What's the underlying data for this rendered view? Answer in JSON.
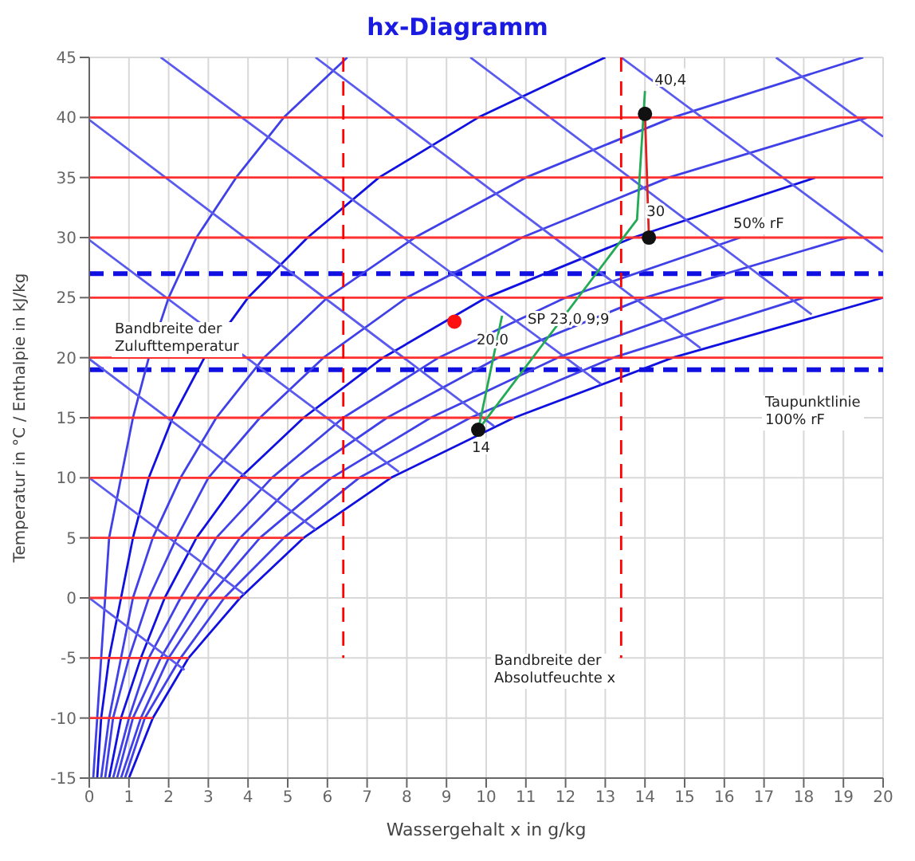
{
  "chart_data": {
    "type": "line",
    "title": "hx-Diagramm",
    "xlabel": "Wassergehalt x in g/kg",
    "ylabel": "Temperatur in °C / Enthalpie in kJ/kg",
    "xlim": [
      0,
      20
    ],
    "ylim": [
      -15,
      45
    ],
    "xticks": [
      0,
      1,
      2,
      3,
      4,
      5,
      6,
      7,
      8,
      9,
      10,
      11,
      12,
      13,
      14,
      15,
      16,
      17,
      18,
      19,
      20
    ],
    "yticks": [
      -15,
      -10,
      -5,
      0,
      5,
      10,
      15,
      20,
      25,
      30,
      35,
      40,
      45
    ],
    "grid": true,
    "marker": "none",
    "line_style": "solid",
    "series": [
      {
        "color": "#1010e0",
        "x": [
          1.0,
          1.6,
          2.5,
          3.8,
          5.4,
          7.6,
          10.7,
          14.7,
          20.0
        ],
        "values": [
          -15,
          -10,
          -5,
          0,
          5,
          10,
          15,
          20,
          25
        ]
      },
      {
        "color": "#4040e8",
        "x": [
          0.9,
          1.4,
          2.3,
          3.4,
          4.9,
          6.8,
          9.6,
          13.2,
          18.0
        ],
        "values": [
          -15,
          -10,
          -5,
          0,
          5,
          10,
          15,
          20,
          25
        ]
      },
      {
        "color": "#4040e8",
        "x": [
          0.8,
          1.3,
          2.0,
          3.0,
          4.3,
          6.1,
          8.6,
          11.8,
          16.0
        ],
        "values": [
          -15,
          -10,
          -5,
          0,
          5,
          10,
          15,
          20,
          25
        ]
      },
      {
        "color": "#4040e8",
        "x": [
          0.7,
          1.1,
          1.8,
          2.7,
          3.8,
          5.3,
          7.5,
          10.3,
          14.0,
          19.1
        ],
        "values": [
          -15,
          -10,
          -5,
          0,
          5,
          10,
          15,
          20,
          25,
          30
        ]
      },
      {
        "color": "#4040e8",
        "x": [
          0.6,
          1.0,
          1.5,
          2.3,
          3.2,
          4.6,
          6.4,
          8.8,
          12.0,
          16.4
        ],
        "values": [
          -15,
          -10,
          -5,
          0,
          5,
          10,
          15,
          20,
          25,
          30
        ]
      },
      {
        "color": "#1010e0",
        "x": [
          0.5,
          0.8,
          1.3,
          1.9,
          2.7,
          3.8,
          5.4,
          7.4,
          10.0,
          13.7,
          18.3
        ],
        "values": [
          -15,
          -10,
          -5,
          0,
          5,
          10,
          15,
          20,
          25,
          30,
          35
        ]
      },
      {
        "color": "#4040e8",
        "x": [
          0.4,
          0.6,
          1.0,
          1.5,
          2.2,
          3.0,
          4.3,
          5.9,
          8.0,
          10.9,
          14.6,
          19.6
        ],
        "values": [
          -15,
          -10,
          -5,
          0,
          5,
          10,
          15,
          20,
          25,
          30,
          35,
          40
        ]
      },
      {
        "color": "#4040e8",
        "x": [
          0.3,
          0.5,
          0.8,
          1.1,
          1.6,
          2.3,
          3.2,
          4.4,
          6.0,
          8.2,
          11.0,
          14.7,
          19.5
        ],
        "values": [
          -15,
          -10,
          -5,
          0,
          5,
          10,
          15,
          20,
          25,
          30,
          35,
          40,
          45
        ]
      },
      {
        "color": "#1010e0",
        "x": [
          0.2,
          0.3,
          0.5,
          0.8,
          1.1,
          1.5,
          2.1,
          2.9,
          4.0,
          5.5,
          7.3,
          9.8,
          13.0
        ],
        "values": [
          -15,
          -10,
          -5,
          0,
          5,
          10,
          15,
          20,
          25,
          30,
          35,
          40,
          45
        ]
      },
      {
        "color": "#4040e8",
        "x": [
          0.1,
          0.2,
          0.3,
          0.4,
          0.5,
          0.8,
          1.1,
          1.5,
          2.0,
          2.7,
          3.7,
          4.9,
          6.5
        ],
        "values": [
          -15,
          -10,
          -5,
          0,
          5,
          10,
          15,
          20,
          25,
          30,
          35,
          40,
          45
        ]
      },
      {
        "color": "#5a5aee",
        "x": [
          0,
          2.4
        ],
        "values": [
          0,
          -6
        ]
      },
      {
        "color": "#5a5aee",
        "x": [
          0,
          3.9
        ],
        "values": [
          10,
          0.3
        ]
      },
      {
        "color": "#5a5aee",
        "x": [
          0,
          5.7
        ],
        "values": [
          19.9,
          5.7
        ]
      },
      {
        "color": "#5a5aee",
        "x": [
          0,
          7.8
        ],
        "values": [
          29.8,
          10.5
        ]
      },
      {
        "color": "#5a5aee",
        "x": [
          0,
          10.2
        ],
        "values": [
          39.8,
          14.3
        ]
      },
      {
        "color": "#5a5aee",
        "x": [
          1.8,
          12.9
        ],
        "values": [
          45,
          17.8
        ]
      },
      {
        "color": "#5a5aee",
        "x": [
          5.7,
          15.4
        ],
        "values": [
          45,
          20.8
        ]
      },
      {
        "color": "#5a5aee",
        "x": [
          9.6,
          18.2
        ],
        "values": [
          45,
          23.6
        ]
      },
      {
        "color": "#5a5aee",
        "x": [
          13.4,
          20
        ],
        "values": [
          45,
          28.8
        ]
      },
      {
        "color": "#5a5aee",
        "x": [
          17.3,
          20
        ],
        "values": [
          45,
          38.4
        ]
      },
      {
        "color": "#ff3030",
        "x": [
          0,
          1.6
        ],
        "values": [
          -10,
          -10
        ]
      },
      {
        "color": "#ff3030",
        "x": [
          0,
          2.5
        ],
        "values": [
          -5,
          -5
        ]
      },
      {
        "color": "#ff3030",
        "x": [
          0,
          3.8
        ],
        "values": [
          0,
          0
        ]
      },
      {
        "color": "#ff3030",
        "x": [
          0,
          5.4
        ],
        "values": [
          5,
          5
        ]
      },
      {
        "color": "#ff3030",
        "x": [
          0,
          7.6
        ],
        "values": [
          10,
          10
        ]
      },
      {
        "color": "#ff3030",
        "x": [
          0,
          10.7
        ],
        "values": [
          15,
          15
        ]
      },
      {
        "color": "#ff3030",
        "x": [
          0,
          20
        ],
        "values": [
          20,
          20
        ]
      },
      {
        "color": "#ff3030",
        "x": [
          0,
          20
        ],
        "values": [
          25,
          25
        ]
      },
      {
        "color": "#ff3030",
        "x": [
          0,
          20
        ],
        "values": [
          30,
          30
        ]
      },
      {
        "color": "#ff3030",
        "x": [
          0,
          20
        ],
        "values": [
          35,
          35
        ]
      },
      {
        "color": "#ff3030",
        "x": [
          0,
          20
        ],
        "values": [
          40,
          40
        ]
      },
      {
        "color": "#ff0000",
        "line_style": "dashed",
        "x": [
          6.4,
          6.4
        ],
        "values": [
          45,
          -5
        ]
      },
      {
        "color": "#ff0000",
        "line_style": "dashed",
        "x": [
          13.4,
          13.4
        ],
        "values": [
          45,
          -5
        ]
      },
      {
        "color": "#22aa55",
        "x": [
          10.4,
          9.8,
          13.8,
          14.0
        ],
        "values": [
          23.5,
          14,
          31.5,
          42.2
        ]
      },
      {
        "color": "#dd2020",
        "x": [
          14.0,
          14.1
        ],
        "values": [
          40.3,
          30
        ]
      },
      {
        "type": "scatter",
        "marker": "circle",
        "color": "#111111",
        "x": [
          9.8,
          14.0,
          14.1
        ],
        "values": [
          14,
          40.3,
          30
        ]
      },
      {
        "type": "scatter",
        "marker": "circle",
        "color": "#ff1010",
        "x": [
          9.2
        ],
        "values": [
          23
        ]
      }
    ],
    "ref_lines": [
      {
        "axis": "y",
        "value": 27,
        "color": "#1010e0",
        "line_style": "dashed"
      },
      {
        "axis": "y",
        "value": 19,
        "color": "#1010e0",
        "line_style": "dashed"
      }
    ],
    "annotations": [
      "Bandbreite der\nZulufttemperatur",
      "Bandbreite der\nAbsolutfeuchte x",
      "50% rF",
      "Taupunktlinie\n100% rF",
      {
        "text": "SP 23,0  9,9",
        "x": 10.4,
        "y": 23.5
      },
      {
        "text": "20,0",
        "x": 10.4,
        "y": 23.5
      },
      {
        "text": "14",
        "x": 9.8,
        "y": 14
      },
      {
        "text": "40,4",
        "x": 14.0,
        "y": 42.2
      },
      {
        "text": "30",
        "x": 13.8,
        "y": 31.5
      }
    ]
  }
}
